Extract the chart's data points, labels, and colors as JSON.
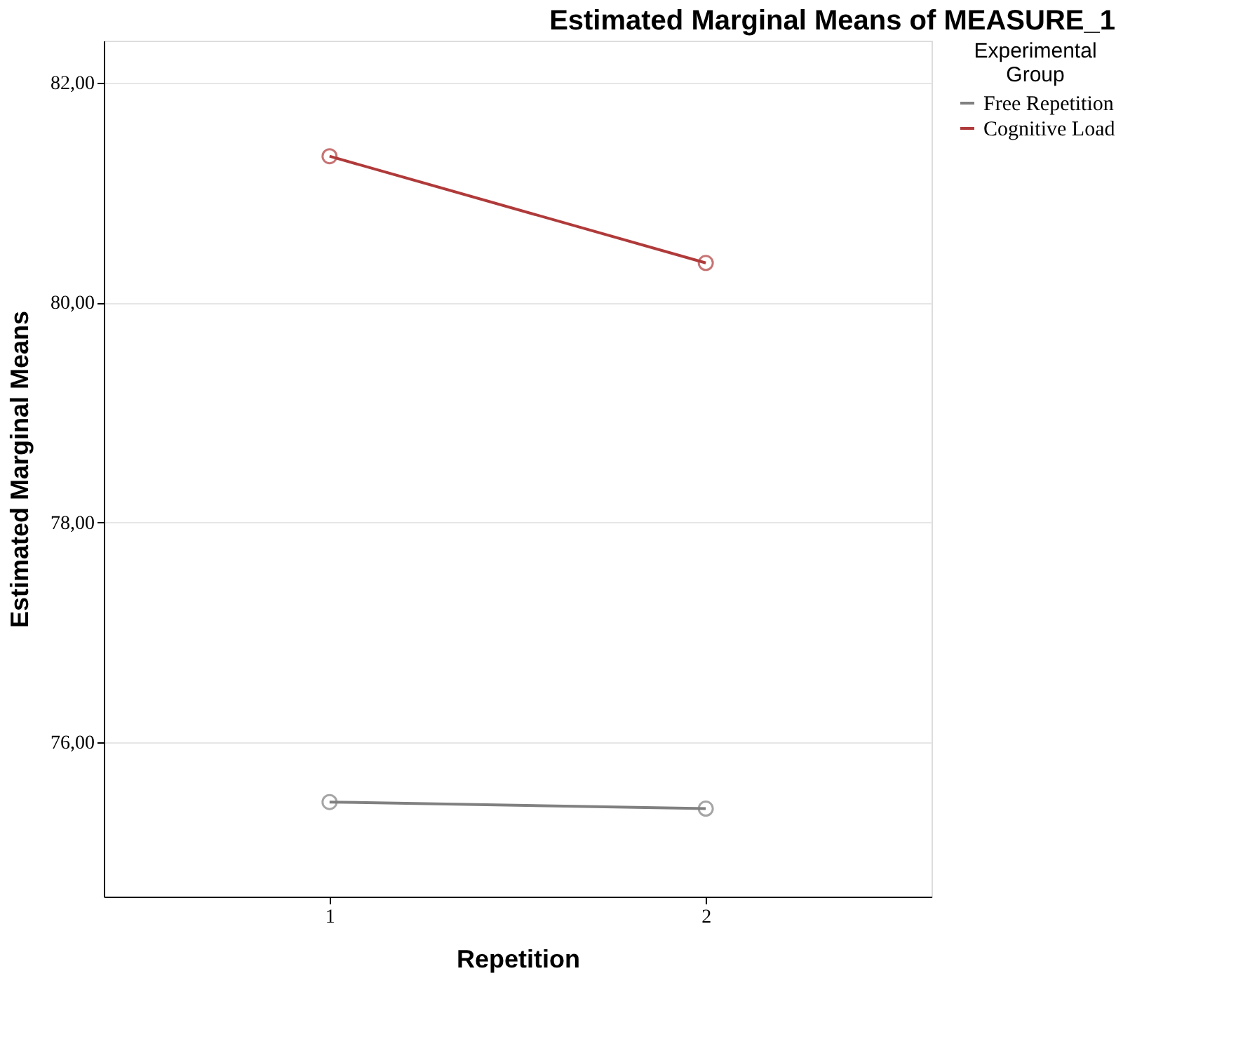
{
  "chart_data": {
    "type": "line",
    "title": "Estimated Marginal Means of MEASURE_1",
    "xlabel": "Repetition",
    "ylabel": "Estimated Marginal Means",
    "legend_title": "Experimental Group",
    "categories": [
      "1",
      "2"
    ],
    "series": [
      {
        "name": "Free Repetition",
        "color": "#808080",
        "values": [
          75.46,
          75.4
        ]
      },
      {
        "name": "Cognitive Load",
        "color": "#b03a3a",
        "values": [
          81.33,
          80.36
        ]
      }
    ],
    "ylim": [
      74.6,
      82.38
    ],
    "yticks": [
      {
        "value": 76,
        "label": "76,00"
      },
      {
        "value": 78,
        "label": "78,00"
      },
      {
        "value": 80,
        "label": "80,00"
      },
      {
        "value": 82,
        "label": "82,00"
      }
    ],
    "grid": "y",
    "legend": "top right",
    "marker": "circle",
    "line_style": "solid"
  }
}
